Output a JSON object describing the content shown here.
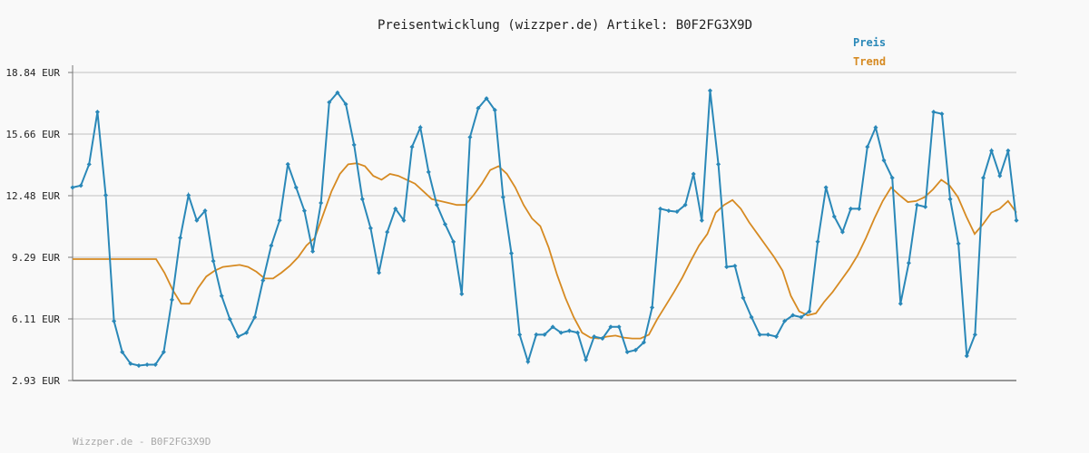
{
  "chart_data": {
    "type": "line",
    "title": "Preisentwicklung (wizzper.de) Artikel: B0F2FG3X9D",
    "ylim": [
      2.93,
      18.84
    ],
    "y_ticks": [
      "18.84 EUR",
      "15.66 EUR",
      "12.48 EUR",
      "9.29 EUR",
      "6.11 EUR",
      "2.93 EUR"
    ],
    "grid": true,
    "legend_position": "top-right",
    "colors": {
      "preis": "#2a88b8",
      "trend": "#d68a22",
      "axis": "#777777",
      "grid": "#dddddd"
    },
    "series": [
      {
        "name": "Preis",
        "values": [
          12.9,
          13.0,
          14.1,
          16.8,
          12.5,
          6.0,
          4.4,
          3.8,
          3.7,
          3.75,
          3.75,
          4.4,
          7.1,
          10.3,
          12.5,
          11.2,
          11.7,
          9.1,
          7.3,
          6.1,
          5.2,
          5.4,
          6.2,
          8.1,
          9.9,
          11.2,
          14.1,
          12.9,
          11.7,
          9.6,
          12.1,
          17.3,
          17.8,
          17.2,
          15.1,
          12.3,
          10.8,
          8.5,
          10.6,
          11.8,
          11.2,
          15.0,
          16.0,
          13.7,
          12.0,
          11.0,
          10.1,
          7.4,
          15.5,
          17.0,
          17.5,
          16.9,
          12.4,
          9.5,
          5.3,
          3.9,
          5.3,
          5.3,
          5.7,
          5.4,
          5.5,
          5.4,
          4.0,
          5.2,
          5.1,
          5.7,
          5.7,
          4.4,
          4.5,
          4.9,
          6.7,
          11.8,
          11.7,
          11.65,
          12.0,
          13.6,
          11.2,
          17.9,
          14.1,
          8.8,
          8.85,
          7.2,
          6.2,
          5.3,
          5.3,
          5.2,
          6.0,
          6.3,
          6.2,
          6.5,
          10.1,
          12.9,
          11.4,
          10.6,
          11.8,
          11.8,
          15.0,
          16.0,
          14.3,
          13.4,
          6.9,
          9.0,
          12.0,
          11.9,
          16.8,
          16.7,
          12.3,
          10.0,
          4.2,
          5.3,
          13.4,
          14.8,
          13.5,
          14.8,
          11.2
        ],
        "note": "values read approximately from the plotted line"
      },
      {
        "name": "Trend",
        "values": [
          9.2,
          9.2,
          9.2,
          9.2,
          9.2,
          9.2,
          9.2,
          9.2,
          9.2,
          9.2,
          9.2,
          8.5,
          7.6,
          6.9,
          6.9,
          7.7,
          8.3,
          8.6,
          8.8,
          8.85,
          8.9,
          8.8,
          8.55,
          8.2,
          8.2,
          8.5,
          8.85,
          9.3,
          9.9,
          10.3,
          11.5,
          12.7,
          13.6,
          14.1,
          14.15,
          14.0,
          13.5,
          13.3,
          13.6,
          13.5,
          13.3,
          13.1,
          12.7,
          12.3,
          12.2,
          12.1,
          12.0,
          12.0,
          12.5,
          13.1,
          13.8,
          14.0,
          13.6,
          12.9,
          12.0,
          11.3,
          10.9,
          9.8,
          8.4,
          7.2,
          6.2,
          5.4,
          5.15,
          5.1,
          5.2,
          5.25,
          5.15,
          5.1,
          5.1,
          5.3,
          6.1,
          6.8,
          7.5,
          8.25,
          9.1,
          9.9,
          10.5,
          11.6,
          12.0,
          12.25,
          11.8,
          11.1,
          10.5,
          9.9,
          9.3,
          8.6,
          7.3,
          6.5,
          6.3,
          6.4,
          7.0,
          7.5,
          8.1,
          8.7,
          9.4,
          10.3,
          11.3,
          12.2,
          12.9,
          12.5,
          12.15,
          12.2,
          12.4,
          12.8,
          13.3,
          13.0,
          12.4,
          11.4,
          10.5,
          11.0,
          11.6,
          11.8,
          12.2,
          11.6
        ]
      }
    ]
  },
  "legend": {
    "preis": "Preis",
    "trend": "Trend"
  },
  "footer": "Wizzper.de - B0F2FG3X9D"
}
